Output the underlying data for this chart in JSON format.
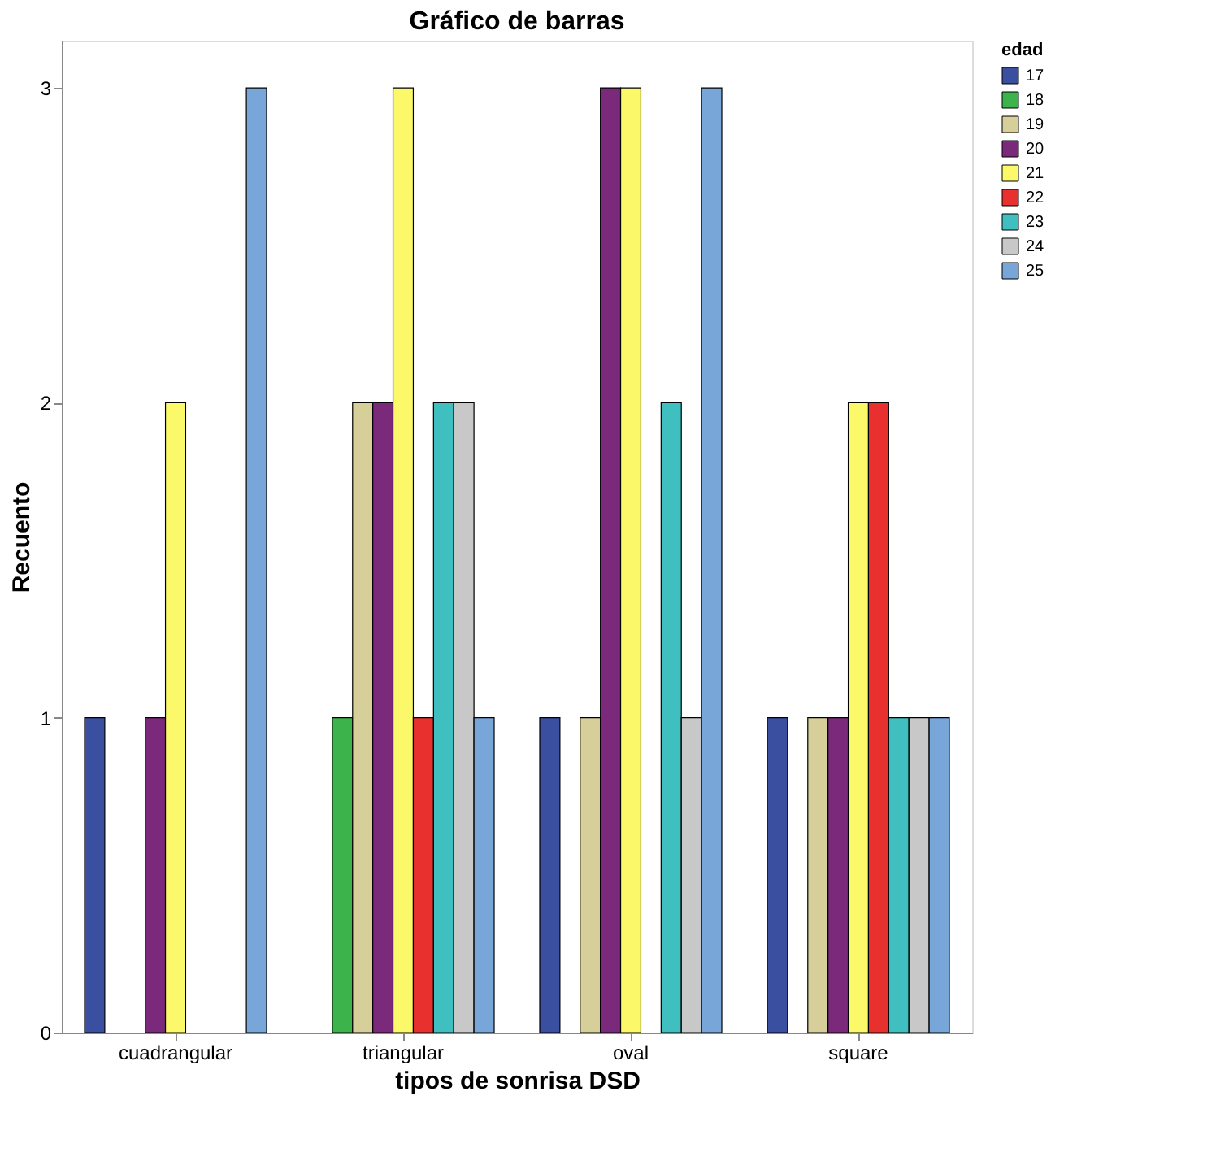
{
  "chart_data": {
    "type": "bar",
    "title": "Gráfico de barras",
    "xlabel": "tipos de sonrisa DSD",
    "ylabel": "Recuento",
    "legend_title": "edad",
    "legend": "right",
    "grid": false,
    "categories": [
      "cuadrangular",
      "triangular",
      "oval",
      "square"
    ],
    "ylim": [
      0,
      3.15
    ],
    "yticks": [
      0,
      1,
      2,
      3
    ],
    "series": [
      {
        "name": "17",
        "color": "#3a4fa0",
        "values": [
          1,
          null,
          1,
          1
        ]
      },
      {
        "name": "18",
        "color": "#3cb44b",
        "values": [
          null,
          1,
          null,
          null
        ]
      },
      {
        "name": "19",
        "color": "#d6cf9a",
        "values": [
          null,
          2,
          1,
          1
        ]
      },
      {
        "name": "20",
        "color": "#7b2a7b",
        "values": [
          1,
          2,
          3,
          1
        ]
      },
      {
        "name": "21",
        "color": "#fbf96a",
        "values": [
          2,
          3,
          3,
          2
        ]
      },
      {
        "name": "22",
        "color": "#e8302e",
        "values": [
          null,
          1,
          null,
          2
        ]
      },
      {
        "name": "23",
        "color": "#3fbfbf",
        "values": [
          null,
          2,
          2,
          1
        ]
      },
      {
        "name": "24",
        "color": "#c8c8c8",
        "values": [
          null,
          2,
          1,
          1
        ]
      },
      {
        "name": "25",
        "color": "#79a6d8",
        "values": [
          3,
          1,
          3,
          1
        ]
      }
    ]
  }
}
